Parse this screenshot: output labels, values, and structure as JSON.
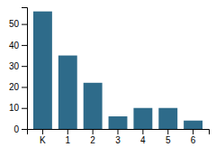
{
  "chart_data": {
    "type": "bar",
    "categories": [
      "K",
      "1",
      "2",
      "3",
      "4",
      "5",
      "6"
    ],
    "values": [
      56,
      35,
      22,
      6,
      10,
      10,
      4
    ],
    "color": "#2e6b8a",
    "ylim": [
      0,
      58
    ],
    "yticks": [
      0,
      10,
      20,
      30,
      40,
      50
    ],
    "grid": false
  }
}
